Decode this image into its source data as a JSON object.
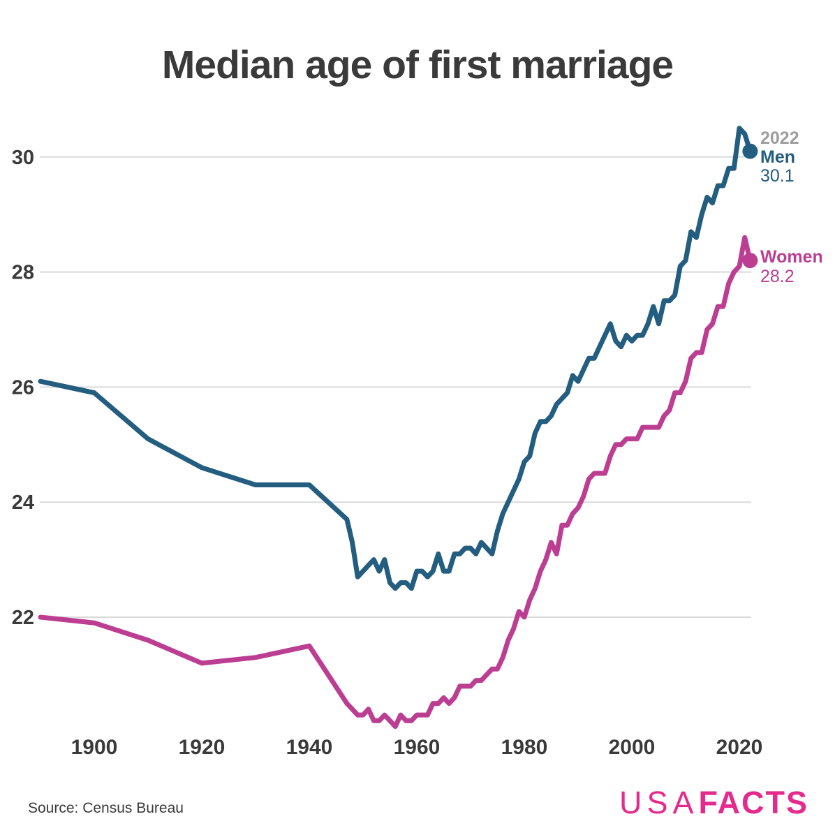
{
  "title": "Median age of first marriage",
  "source": "Source: Census Bureau",
  "logo": {
    "part1": "USA",
    "part2": "FACTS"
  },
  "end_labels": {
    "year": "2022",
    "men_label": "Men",
    "men_value": "30.1",
    "women_label": "Women",
    "women_value": "28.2"
  },
  "colors": {
    "men": "#235d80",
    "women": "#bc3e92",
    "year_label": "#9d9d9d",
    "text": "#3a3a3a",
    "grid": "#dadada",
    "logo_pink": "#e52a8e",
    "background": "#ffffff"
  },
  "chart_data": {
    "type": "line",
    "title": "Median age of first marriage",
    "xlabel": "",
    "ylabel": "",
    "x_ticks": [
      1900,
      1920,
      1940,
      1960,
      1980,
      2000,
      2020
    ],
    "y_ticks": [
      22,
      24,
      26,
      28,
      30
    ],
    "x_range": [
      1890,
      2022
    ],
    "y_range": [
      20.1,
      30.5
    ],
    "grid": "horizontal gridlines only",
    "legend_position": "labels at right end of lines with end dots",
    "series": [
      {
        "name": "Men",
        "color_key": "men",
        "end_value": 30.1,
        "points": [
          [
            1890,
            26.1
          ],
          [
            1900,
            25.9
          ],
          [
            1910,
            25.1
          ],
          [
            1920,
            24.6
          ],
          [
            1930,
            24.3
          ],
          [
            1940,
            24.3
          ],
          [
            1947,
            23.7
          ],
          [
            1948,
            23.3
          ],
          [
            1949,
            22.7
          ],
          [
            1950,
            22.8
          ],
          [
            1951,
            22.9
          ],
          [
            1952,
            23.0
          ],
          [
            1953,
            22.8
          ],
          [
            1954,
            23.0
          ],
          [
            1955,
            22.6
          ],
          [
            1956,
            22.5
          ],
          [
            1957,
            22.6
          ],
          [
            1958,
            22.6
          ],
          [
            1959,
            22.5
          ],
          [
            1960,
            22.8
          ],
          [
            1961,
            22.8
          ],
          [
            1962,
            22.7
          ],
          [
            1963,
            22.8
          ],
          [
            1964,
            23.1
          ],
          [
            1965,
            22.8
          ],
          [
            1966,
            22.8
          ],
          [
            1967,
            23.1
          ],
          [
            1968,
            23.1
          ],
          [
            1969,
            23.2
          ],
          [
            1970,
            23.2
          ],
          [
            1971,
            23.1
          ],
          [
            1972,
            23.3
          ],
          [
            1973,
            23.2
          ],
          [
            1974,
            23.1
          ],
          [
            1975,
            23.5
          ],
          [
            1976,
            23.8
          ],
          [
            1977,
            24.0
          ],
          [
            1978,
            24.2
          ],
          [
            1979,
            24.4
          ],
          [
            1980,
            24.7
          ],
          [
            1981,
            24.8
          ],
          [
            1982,
            25.2
          ],
          [
            1983,
            25.4
          ],
          [
            1984,
            25.4
          ],
          [
            1985,
            25.5
          ],
          [
            1986,
            25.7
          ],
          [
            1987,
            25.8
          ],
          [
            1988,
            25.9
          ],
          [
            1989,
            26.2
          ],
          [
            1990,
            26.1
          ],
          [
            1991,
            26.3
          ],
          [
            1992,
            26.5
          ],
          [
            1993,
            26.5
          ],
          [
            1994,
            26.7
          ],
          [
            1995,
            26.9
          ],
          [
            1996,
            27.1
          ],
          [
            1997,
            26.8
          ],
          [
            1998,
            26.7
          ],
          [
            1999,
            26.9
          ],
          [
            2000,
            26.8
          ],
          [
            2001,
            26.9
          ],
          [
            2002,
            26.9
          ],
          [
            2003,
            27.1
          ],
          [
            2004,
            27.4
          ],
          [
            2005,
            27.1
          ],
          [
            2006,
            27.5
          ],
          [
            2007,
            27.5
          ],
          [
            2008,
            27.6
          ],
          [
            2009,
            28.1
          ],
          [
            2010,
            28.2
          ],
          [
            2011,
            28.7
          ],
          [
            2012,
            28.6
          ],
          [
            2013,
            29.0
          ],
          [
            2014,
            29.3
          ],
          [
            2015,
            29.2
          ],
          [
            2016,
            29.5
          ],
          [
            2017,
            29.5
          ],
          [
            2018,
            29.8
          ],
          [
            2019,
            29.8
          ],
          [
            2020,
            30.5
          ],
          [
            2021,
            30.4
          ],
          [
            2022,
            30.1
          ]
        ]
      },
      {
        "name": "Women",
        "color_key": "women",
        "end_value": 28.2,
        "points": [
          [
            1890,
            22.0
          ],
          [
            1900,
            21.9
          ],
          [
            1910,
            21.6
          ],
          [
            1920,
            21.2
          ],
          [
            1930,
            21.3
          ],
          [
            1940,
            21.5
          ],
          [
            1947,
            20.5
          ],
          [
            1948,
            20.4
          ],
          [
            1949,
            20.3
          ],
          [
            1950,
            20.3
          ],
          [
            1951,
            20.4
          ],
          [
            1952,
            20.2
          ],
          [
            1953,
            20.2
          ],
          [
            1954,
            20.3
          ],
          [
            1955,
            20.2
          ],
          [
            1956,
            20.1
          ],
          [
            1957,
            20.3
          ],
          [
            1958,
            20.2
          ],
          [
            1959,
            20.2
          ],
          [
            1960,
            20.3
          ],
          [
            1961,
            20.3
          ],
          [
            1962,
            20.3
          ],
          [
            1963,
            20.5
          ],
          [
            1964,
            20.5
          ],
          [
            1965,
            20.6
          ],
          [
            1966,
            20.5
          ],
          [
            1967,
            20.6
          ],
          [
            1968,
            20.8
          ],
          [
            1969,
            20.8
          ],
          [
            1970,
            20.8
          ],
          [
            1971,
            20.9
          ],
          [
            1972,
            20.9
          ],
          [
            1973,
            21.0
          ],
          [
            1974,
            21.1
          ],
          [
            1975,
            21.1
          ],
          [
            1976,
            21.3
          ],
          [
            1977,
            21.6
          ],
          [
            1978,
            21.8
          ],
          [
            1979,
            22.1
          ],
          [
            1980,
            22.0
          ],
          [
            1981,
            22.3
          ],
          [
            1982,
            22.5
          ],
          [
            1983,
            22.8
          ],
          [
            1984,
            23.0
          ],
          [
            1985,
            23.3
          ],
          [
            1986,
            23.1
          ],
          [
            1987,
            23.6
          ],
          [
            1988,
            23.6
          ],
          [
            1989,
            23.8
          ],
          [
            1990,
            23.9
          ],
          [
            1991,
            24.1
          ],
          [
            1992,
            24.4
          ],
          [
            1993,
            24.5
          ],
          [
            1994,
            24.5
          ],
          [
            1995,
            24.5
          ],
          [
            1996,
            24.8
          ],
          [
            1997,
            25.0
          ],
          [
            1998,
            25.0
          ],
          [
            1999,
            25.1
          ],
          [
            2000,
            25.1
          ],
          [
            2001,
            25.1
          ],
          [
            2002,
            25.3
          ],
          [
            2003,
            25.3
          ],
          [
            2004,
            25.3
          ],
          [
            2005,
            25.3
          ],
          [
            2006,
            25.5
          ],
          [
            2007,
            25.6
          ],
          [
            2008,
            25.9
          ],
          [
            2009,
            25.9
          ],
          [
            2010,
            26.1
          ],
          [
            2011,
            26.5
          ],
          [
            2012,
            26.6
          ],
          [
            2013,
            26.6
          ],
          [
            2014,
            27.0
          ],
          [
            2015,
            27.1
          ],
          [
            2016,
            27.4
          ],
          [
            2017,
            27.4
          ],
          [
            2018,
            27.8
          ],
          [
            2019,
            28.0
          ],
          [
            2020,
            28.1
          ],
          [
            2021,
            28.6
          ],
          [
            2022,
            28.2
          ]
        ]
      }
    ]
  }
}
